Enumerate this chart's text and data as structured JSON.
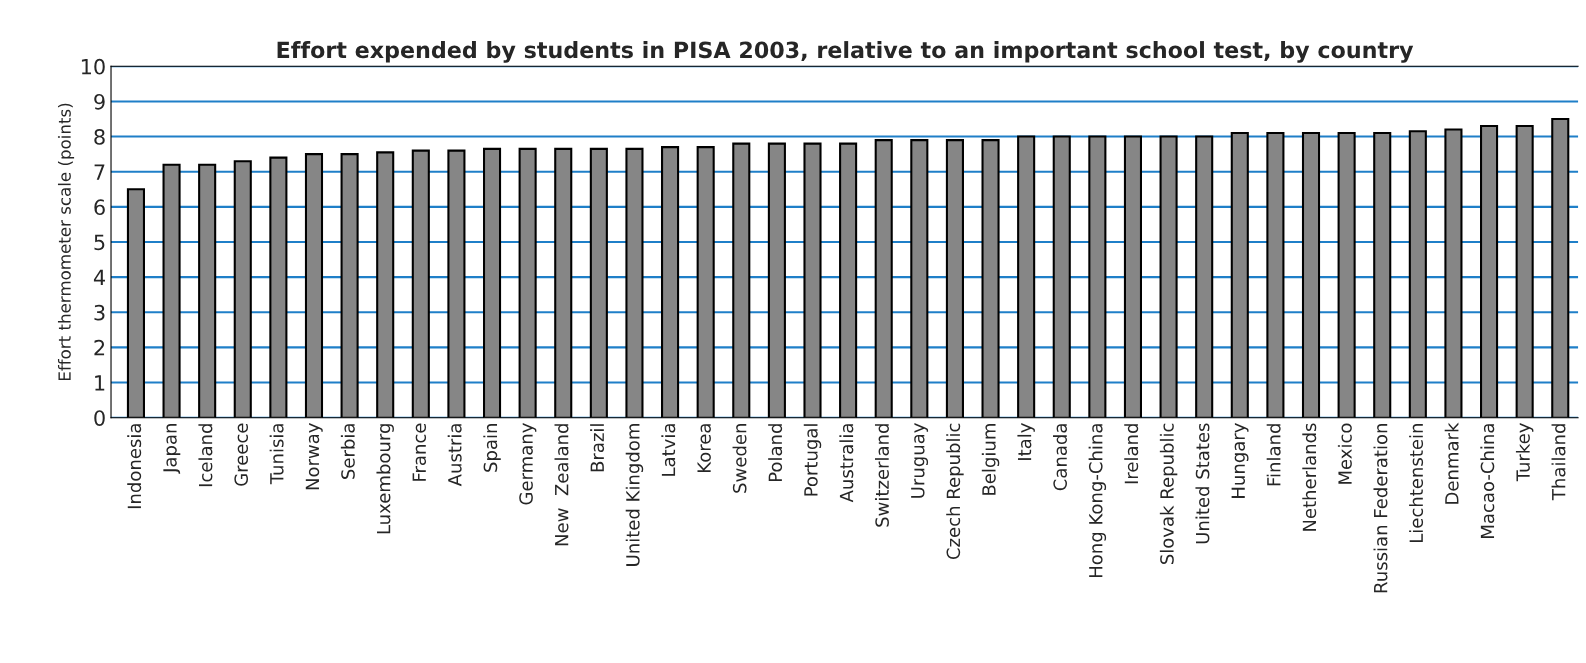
{
  "chart_data": {
    "type": "bar",
    "title": "Effort expended by students in PISA 2003, relative to an important school test, by country",
    "ylabel": "Effort thermometer scale (points)",
    "categories": [
      "Indonesia",
      "Japan",
      "Iceland",
      "Greece",
      "Tunisia",
      "Norway",
      "Serbia",
      "Luxembourg",
      "France",
      "Austria",
      "Spain",
      "Germany",
      "New  Zealand",
      "Brazil",
      "United Kingdom",
      "Latvia",
      "Korea",
      "Sweden",
      "Poland",
      "Portugal",
      "Australia",
      "Switzerland",
      "Uruguay",
      "Czech Republic",
      "Belgium",
      "Italy",
      "Canada",
      "Hong Kong-China",
      "Ireland",
      "Slovak Republic",
      "United States",
      "Hungary",
      "Finland",
      "Netherlands",
      "Mexico",
      "Russian Federation",
      "Liechtenstein",
      "Denmark",
      "Macao-China",
      "Turkey",
      "Thailand"
    ],
    "values": [
      6.5,
      7.2,
      7.2,
      7.3,
      7.4,
      7.5,
      7.5,
      7.55,
      7.6,
      7.6,
      7.65,
      7.65,
      7.65,
      7.65,
      7.65,
      7.7,
      7.7,
      7.8,
      7.8,
      7.8,
      7.8,
      7.9,
      7.9,
      7.9,
      7.9,
      8.0,
      8.0,
      8.0,
      8.0,
      8.0,
      8.0,
      8.1,
      8.1,
      8.1,
      8.1,
      8.1,
      8.15,
      8.2,
      8.3,
      8.3,
      8.5
    ],
    "color": "#868686",
    "ylim": [
      0,
      10
    ],
    "yticks": [
      0,
      1,
      2,
      3,
      4,
      5,
      6,
      7,
      8,
      9,
      10
    ],
    "grid": "y"
  }
}
